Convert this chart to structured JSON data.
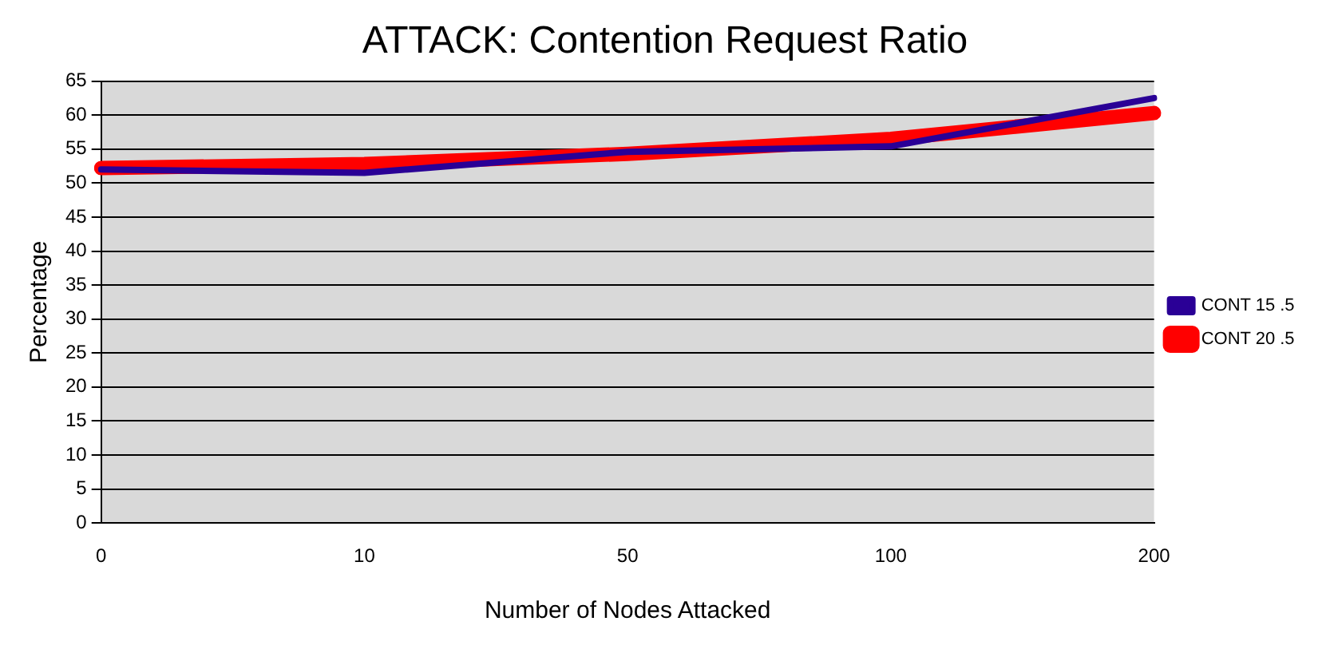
{
  "chart_data": {
    "type": "line",
    "title": "ATTACK: Contention Request Ratio",
    "xlabel": "Number of Nodes Attacked",
    "ylabel": "Percentage",
    "categories": [
      "0",
      "10",
      "50",
      "100",
      "200"
    ],
    "series": [
      {
        "name": "CONT 15 .5",
        "color": "#2a0096",
        "values": [
          52.0,
          51.5,
          54.6,
          55.4,
          62.5
        ]
      },
      {
        "name": "CONT 20 .5",
        "color": "#ff0000",
        "values": [
          52.2,
          52.8,
          54.3,
          56.5,
          60.3
        ]
      }
    ],
    "ylim": [
      0,
      65
    ],
    "yticks": [
      0,
      5,
      10,
      15,
      20,
      25,
      30,
      35,
      40,
      45,
      50,
      55,
      60,
      65
    ],
    "grid": "y",
    "legend": "right",
    "marker": "none",
    "line_style": "solid"
  }
}
